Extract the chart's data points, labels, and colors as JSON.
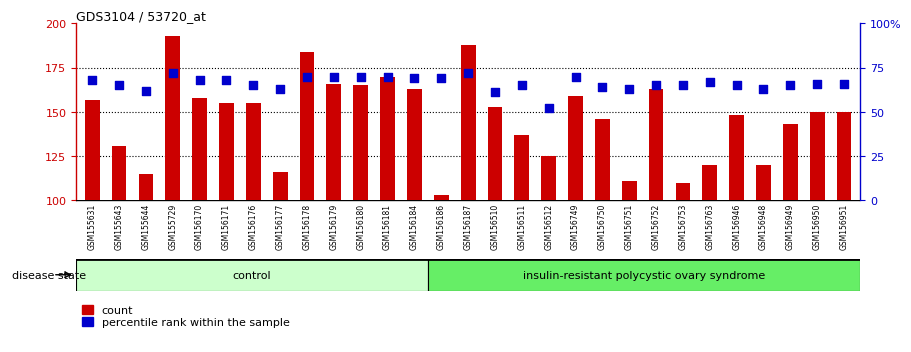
{
  "title": "GDS3104 / 53720_at",
  "samples": [
    "GSM155631",
    "GSM155643",
    "GSM155644",
    "GSM155729",
    "GSM156170",
    "GSM156171",
    "GSM156176",
    "GSM156177",
    "GSM156178",
    "GSM156179",
    "GSM156180",
    "GSM156181",
    "GSM156184",
    "GSM156186",
    "GSM156187",
    "GSM156510",
    "GSM156511",
    "GSM156512",
    "GSM156749",
    "GSM156750",
    "GSM156751",
    "GSM156752",
    "GSM156753",
    "GSM156763",
    "GSM156946",
    "GSM156948",
    "GSM156949",
    "GSM156950",
    "GSM156951"
  ],
  "counts": [
    157,
    131,
    115,
    193,
    158,
    155,
    155,
    116,
    184,
    166,
    165,
    170,
    163,
    103,
    188,
    153,
    137,
    125,
    159,
    146,
    111,
    163,
    110,
    120,
    148,
    120,
    143,
    150,
    150
  ],
  "percentile_ranks": [
    68,
    65,
    62,
    72,
    68,
    68,
    65,
    63,
    70,
    70,
    70,
    70,
    69,
    69,
    72,
    61,
    65,
    52,
    70,
    64,
    63,
    65,
    65,
    67,
    65,
    63,
    65,
    66,
    66
  ],
  "control_count": 13,
  "disease_count": 16,
  "ylim_left": [
    100,
    200
  ],
  "ylim_right": [
    0,
    100
  ],
  "yticks_left": [
    100,
    125,
    150,
    175,
    200
  ],
  "yticks_right": [
    0,
    25,
    50,
    75,
    100
  ],
  "ytick_labels_right": [
    "0",
    "25",
    "50",
    "75",
    "100%"
  ],
  "bar_color": "#cc0000",
  "dot_color": "#0000cc",
  "control_bg": "#ccffcc",
  "disease_bg": "#66ee66",
  "plot_bg": "#ffffff",
  "xlabel_bg": "#cccccc",
  "grid_color": "#000000",
  "bar_width": 0.55,
  "dot_size": 40,
  "dot_marker": "s"
}
